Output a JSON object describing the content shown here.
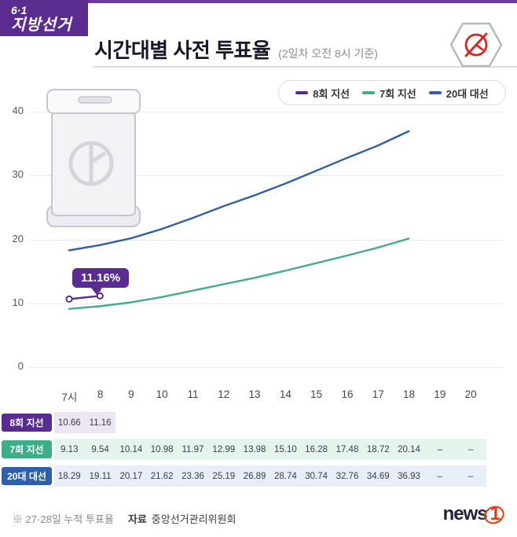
{
  "header": {
    "badge_line1": "6·1",
    "badge_line2": "지방선거",
    "title": "시간대별 사전 투표율",
    "subtitle": "(2일차 오전 8시 기준)"
  },
  "legend": [
    {
      "label": "8회 지선",
      "color": "#5b2c8f"
    },
    {
      "label": "7회 지선",
      "color": "#3eae88"
    },
    {
      "label": "20대 대선",
      "color": "#2f5fa8"
    }
  ],
  "annotation": {
    "text": "11.16%"
  },
  "chart_data": {
    "type": "line",
    "title": "시간대별 사전 투표율",
    "x": [
      "7시",
      "8",
      "9",
      "10",
      "11",
      "12",
      "13",
      "14",
      "15",
      "16",
      "17",
      "18",
      "19",
      "20"
    ],
    "ylim": [
      0,
      40
    ],
    "yticks": [
      0,
      10,
      20,
      30,
      40
    ],
    "grid": true,
    "legend_position": "top-right",
    "series": [
      {
        "name": "8회 지선",
        "color": "#5b2c8f",
        "values": [
          10.66,
          11.16
        ]
      },
      {
        "name": "7회 지선",
        "color": "#3eae88",
        "values": [
          9.13,
          9.54,
          10.14,
          10.98,
          11.97,
          12.99,
          13.98,
          15.1,
          16.28,
          17.48,
          18.72,
          20.14
        ]
      },
      {
        "name": "20대 대선",
        "color": "#2f5fa8",
        "values": [
          18.29,
          19.11,
          20.17,
          21.62,
          23.36,
          25.19,
          26.89,
          28.74,
          30.74,
          32.76,
          34.69,
          36.93
        ]
      }
    ]
  },
  "table": {
    "columns": [
      "7시",
      "8",
      "9",
      "10",
      "11",
      "12",
      "13",
      "14",
      "15",
      "16",
      "17",
      "18",
      "19",
      "20"
    ],
    "rows": [
      {
        "label": "8회 지선",
        "color": "#5b2c8f",
        "band": "#ede7f4",
        "values": [
          "10.66",
          "11.16",
          "",
          "",
          "",
          "",
          "",
          "",
          "",
          "",
          "",
          "",
          "",
          ""
        ]
      },
      {
        "label": "7회 지선",
        "color": "#3eae88",
        "band": "#e6f4ee",
        "values": [
          "9.13",
          "9.54",
          "10.14",
          "10.98",
          "11.97",
          "12.99",
          "13.98",
          "15.10",
          "16.28",
          "17.48",
          "18.72",
          "20.14",
          "–",
          "–"
        ]
      },
      {
        "label": "20대 대선",
        "color": "#2f5fa8",
        "band": "#e8eef7",
        "values": [
          "18.29",
          "19.11",
          "20.17",
          "21.62",
          "23.36",
          "25.19",
          "26.89",
          "28.74",
          "30.74",
          "32.76",
          "34.69",
          "36.93",
          "–",
          "–"
        ]
      }
    ]
  },
  "footer": {
    "note": "※ 27·28일 누적 투표율",
    "source_label": "자료",
    "source": "중앙선거관리위원회",
    "logo_text": "news",
    "logo_num": "1"
  },
  "icons": {
    "emblem": "ballot-stamp-icon",
    "illustration": "ballot-box-icon"
  }
}
